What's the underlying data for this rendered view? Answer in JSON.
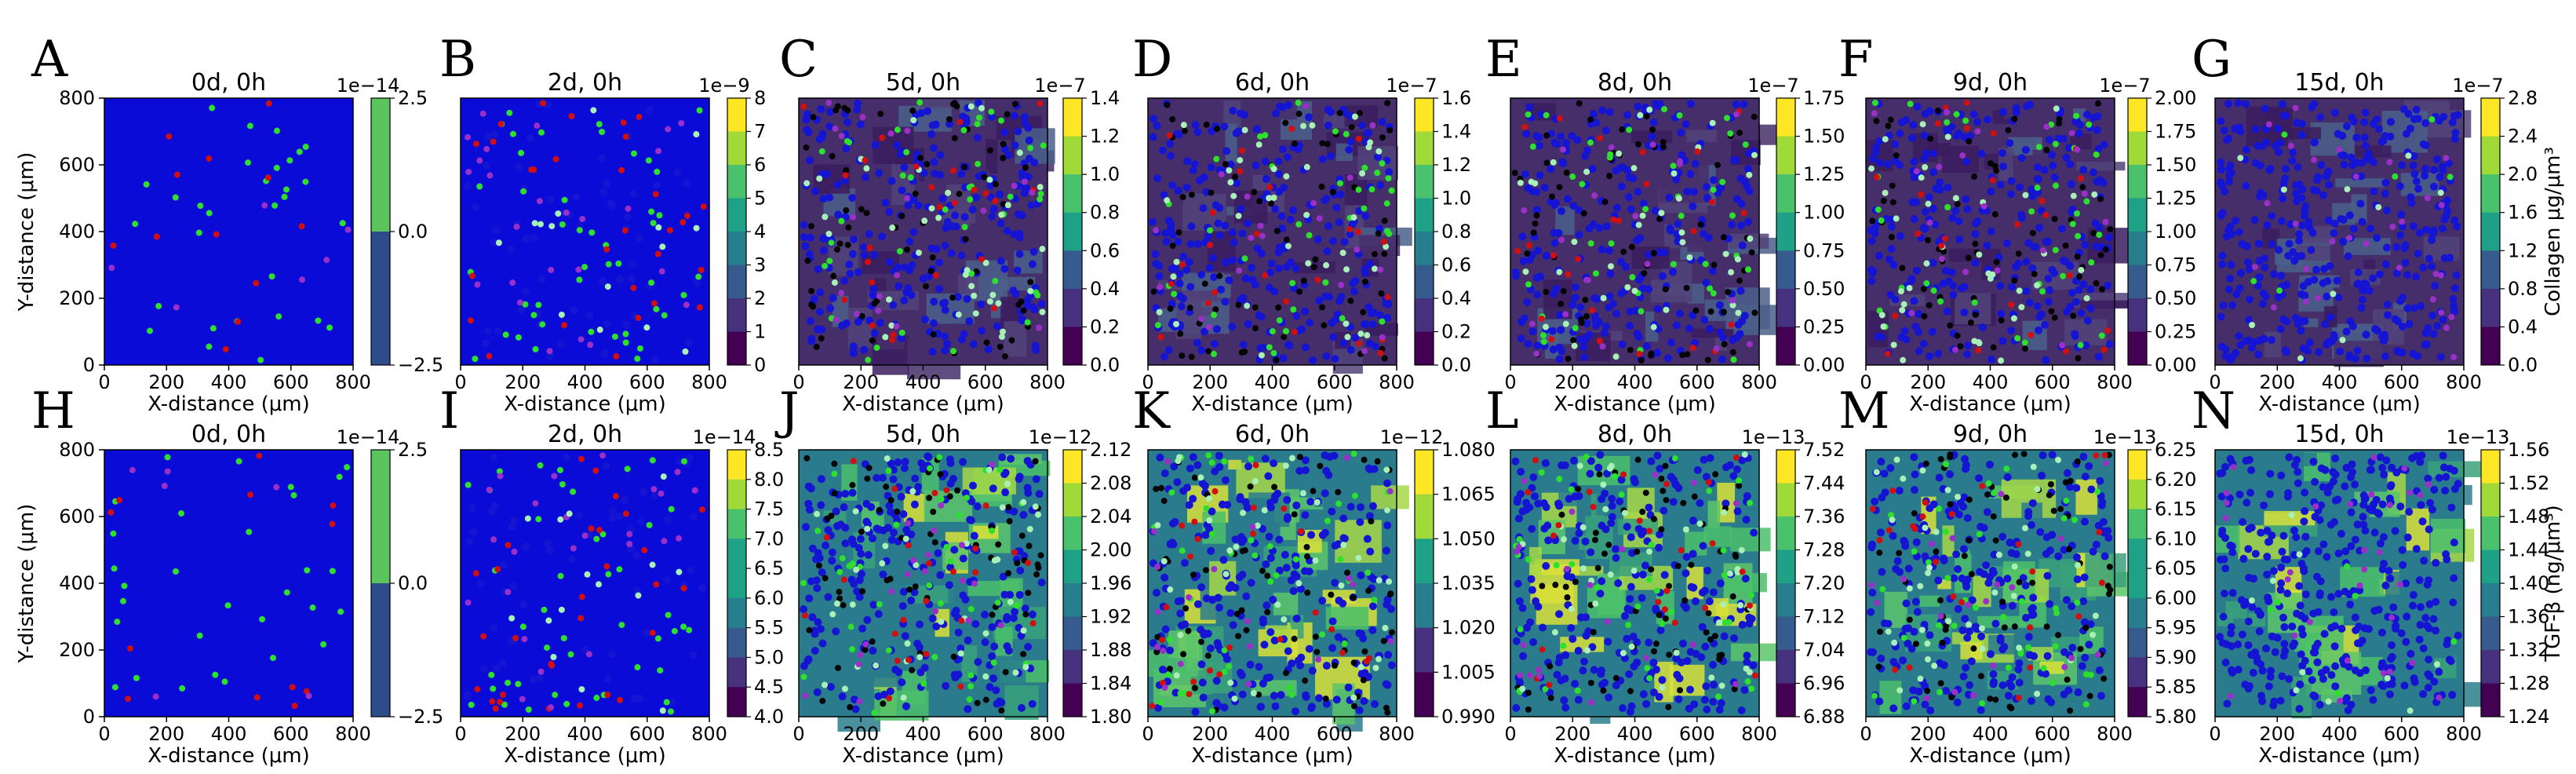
{
  "colors": {
    "collagen_bg": "#462e6a",
    "tgf_bg": "#2a7c8c",
    "cell_blue": "#1414d2",
    "cell_green": "#2ee02e",
    "cell_black": "#050505",
    "cell_red": "#d01010",
    "cell_lightgreen": "#a8f0b8",
    "cell_purple": "#9a30c8",
    "axes_bg_blue": "#0b0bd8",
    "viridis": [
      "#440154",
      "#46327e",
      "#365c8d",
      "#277f8e",
      "#1fa187",
      "#4ac16d",
      "#a0da39",
      "#fde725"
    ]
  },
  "rows": [
    {
      "colorbar_label": "Collagen μg/μm³",
      "y_axis_label": "Y-distance (μm)",
      "panels": [
        {
          "letter": "A",
          "title": "0d, 0h",
          "exponent": "1e−14",
          "ticks": [
            "2.5",
            "0.0",
            "−2.5"
          ],
          "cbar_colors": [
            "#2e4c8c",
            "#5cc45c"
          ],
          "style": "blank"
        },
        {
          "letter": "B",
          "title": "2d, 0h",
          "exponent": "1e−9",
          "ticks": [
            "8",
            "7",
            "6",
            "5",
            "4",
            "3",
            "2",
            "1",
            "0"
          ],
          "style": "sparse"
        },
        {
          "letter": "C",
          "title": "5d, 0h",
          "exponent": "1e−7",
          "ticks": [
            "1.4",
            "1.2",
            "1.0",
            "0.8",
            "0.6",
            "0.4",
            "0.2",
            "0.0"
          ],
          "style": "dense"
        },
        {
          "letter": "D",
          "title": "6d, 0h",
          "exponent": "1e−7",
          "ticks": [
            "1.6",
            "1.4",
            "1.2",
            "1.0",
            "0.8",
            "0.6",
            "0.4",
            "0.2",
            "0.0"
          ],
          "style": "dense"
        },
        {
          "letter": "E",
          "title": "8d, 0h",
          "exponent": "1e−7",
          "ticks": [
            "1.75",
            "1.50",
            "1.25",
            "1.00",
            "0.75",
            "0.50",
            "0.25",
            "0.00"
          ],
          "style": "dense"
        },
        {
          "letter": "F",
          "title": "9d, 0h",
          "exponent": "1e−7",
          "ticks": [
            "2.00",
            "1.75",
            "1.50",
            "1.25",
            "1.00",
            "0.75",
            "0.50",
            "0.25",
            "0.00"
          ],
          "style": "dense"
        },
        {
          "letter": "G",
          "title": "15d, 0h",
          "exponent": "1e−7",
          "ticks": [
            "2.8",
            "2.4",
            "2.0",
            "1.6",
            "1.2",
            "0.8",
            "0.4",
            "0.0"
          ],
          "style": "late"
        }
      ]
    },
    {
      "colorbar_label": "TGF-β (ng/μm³)",
      "y_axis_label": "Y-distance (μm)",
      "panels": [
        {
          "letter": "H",
          "title": "0d, 0h",
          "exponent": "1e−14",
          "ticks": [
            "2.5",
            "0.0",
            "−2.5"
          ],
          "cbar_colors": [
            "#2e4c8c",
            "#5cc45c"
          ],
          "style": "blank"
        },
        {
          "letter": "I",
          "title": "2d, 0h",
          "exponent": "1e−14",
          "ticks": [
            "8.5",
            "8.0",
            "7.5",
            "7.0",
            "6.5",
            "6.0",
            "5.5",
            "5.0",
            "4.5",
            "4.0"
          ],
          "style": "sparse"
        },
        {
          "letter": "J",
          "title": "5d, 0h",
          "exponent": "1e−12",
          "ticks": [
            "2.12",
            "2.08",
            "2.04",
            "2.00",
            "1.96",
            "1.92",
            "1.88",
            "1.84",
            "1.80"
          ],
          "style": "dense"
        },
        {
          "letter": "K",
          "title": "6d, 0h",
          "exponent": "1e−12",
          "ticks": [
            "1.080",
            "1.065",
            "1.050",
            "1.035",
            "1.020",
            "1.005",
            "0.990"
          ],
          "style": "dense"
        },
        {
          "letter": "L",
          "title": "8d, 0h",
          "exponent": "1e−13",
          "ticks": [
            "7.52",
            "7.44",
            "7.36",
            "7.28",
            "7.20",
            "7.12",
            "7.04",
            "6.96",
            "6.88"
          ],
          "style": "dense"
        },
        {
          "letter": "M",
          "title": "9d, 0h",
          "exponent": "1e−13",
          "ticks": [
            "6.25",
            "6.20",
            "6.15",
            "6.10",
            "6.05",
            "6.00",
            "5.95",
            "5.90",
            "5.85",
            "5.80"
          ],
          "style": "dense"
        },
        {
          "letter": "N",
          "title": "15d, 0h",
          "exponent": "1e−13",
          "ticks": [
            "1.56",
            "1.52",
            "1.48",
            "1.44",
            "1.40",
            "1.36",
            "1.32",
            "1.28",
            "1.24"
          ],
          "style": "late"
        }
      ]
    }
  ],
  "x_axis_label": "X-distance (μm)",
  "axis_ticks": [
    "0",
    "200",
    "400",
    "600",
    "800"
  ],
  "chart_data": {
    "type": "heatmap",
    "xlim": [
      0,
      800
    ],
    "ylim": [
      0,
      800
    ],
    "xlabel": "X-distance (μm)",
    "ylabel": "Y-distance (μm)",
    "panels": [
      {
        "panel": "A",
        "variable": "Collagen",
        "time": "0d, 0h",
        "colorbar_range": [
          -2.5e-14,
          2.5e-14
        ]
      },
      {
        "panel": "B",
        "variable": "Collagen",
        "time": "2d, 0h",
        "colorbar_range": [
          0,
          8e-09
        ]
      },
      {
        "panel": "C",
        "variable": "Collagen",
        "time": "5d, 0h",
        "colorbar_range": [
          0,
          1.4e-07
        ]
      },
      {
        "panel": "D",
        "variable": "Collagen",
        "time": "6d, 0h",
        "colorbar_range": [
          0,
          1.6e-07
        ]
      },
      {
        "panel": "E",
        "variable": "Collagen",
        "time": "8d, 0h",
        "colorbar_range": [
          0,
          1.75e-07
        ]
      },
      {
        "panel": "F",
        "variable": "Collagen",
        "time": "9d, 0h",
        "colorbar_range": [
          0,
          2e-07
        ]
      },
      {
        "panel": "G",
        "variable": "Collagen",
        "time": "15d, 0h",
        "colorbar_range": [
          0,
          2.8e-07
        ]
      },
      {
        "panel": "H",
        "variable": "TGF-β",
        "time": "0d, 0h",
        "colorbar_range": [
          -2.5e-14,
          2.5e-14
        ]
      },
      {
        "panel": "I",
        "variable": "TGF-β",
        "time": "2d, 0h",
        "colorbar_range": [
          4e-14,
          8.5e-14
        ]
      },
      {
        "panel": "J",
        "variable": "TGF-β",
        "time": "5d, 0h",
        "colorbar_range": [
          1.8e-12,
          2.12e-12
        ]
      },
      {
        "panel": "K",
        "variable": "TGF-β",
        "time": "6d, 0h",
        "colorbar_range": [
          9.9e-13,
          1.08e-12
        ]
      },
      {
        "panel": "L",
        "variable": "TGF-β",
        "time": "8d, 0h",
        "colorbar_range": [
          6.88e-13,
          7.52e-13
        ]
      },
      {
        "panel": "M",
        "variable": "TGF-β",
        "time": "9d, 0h",
        "colorbar_range": [
          5.8e-13,
          6.25e-13
        ]
      },
      {
        "panel": "N",
        "variable": "TGF-β",
        "time": "15d, 0h",
        "colorbar_range": [
          1.24e-13,
          1.56e-13
        ]
      }
    ]
  }
}
